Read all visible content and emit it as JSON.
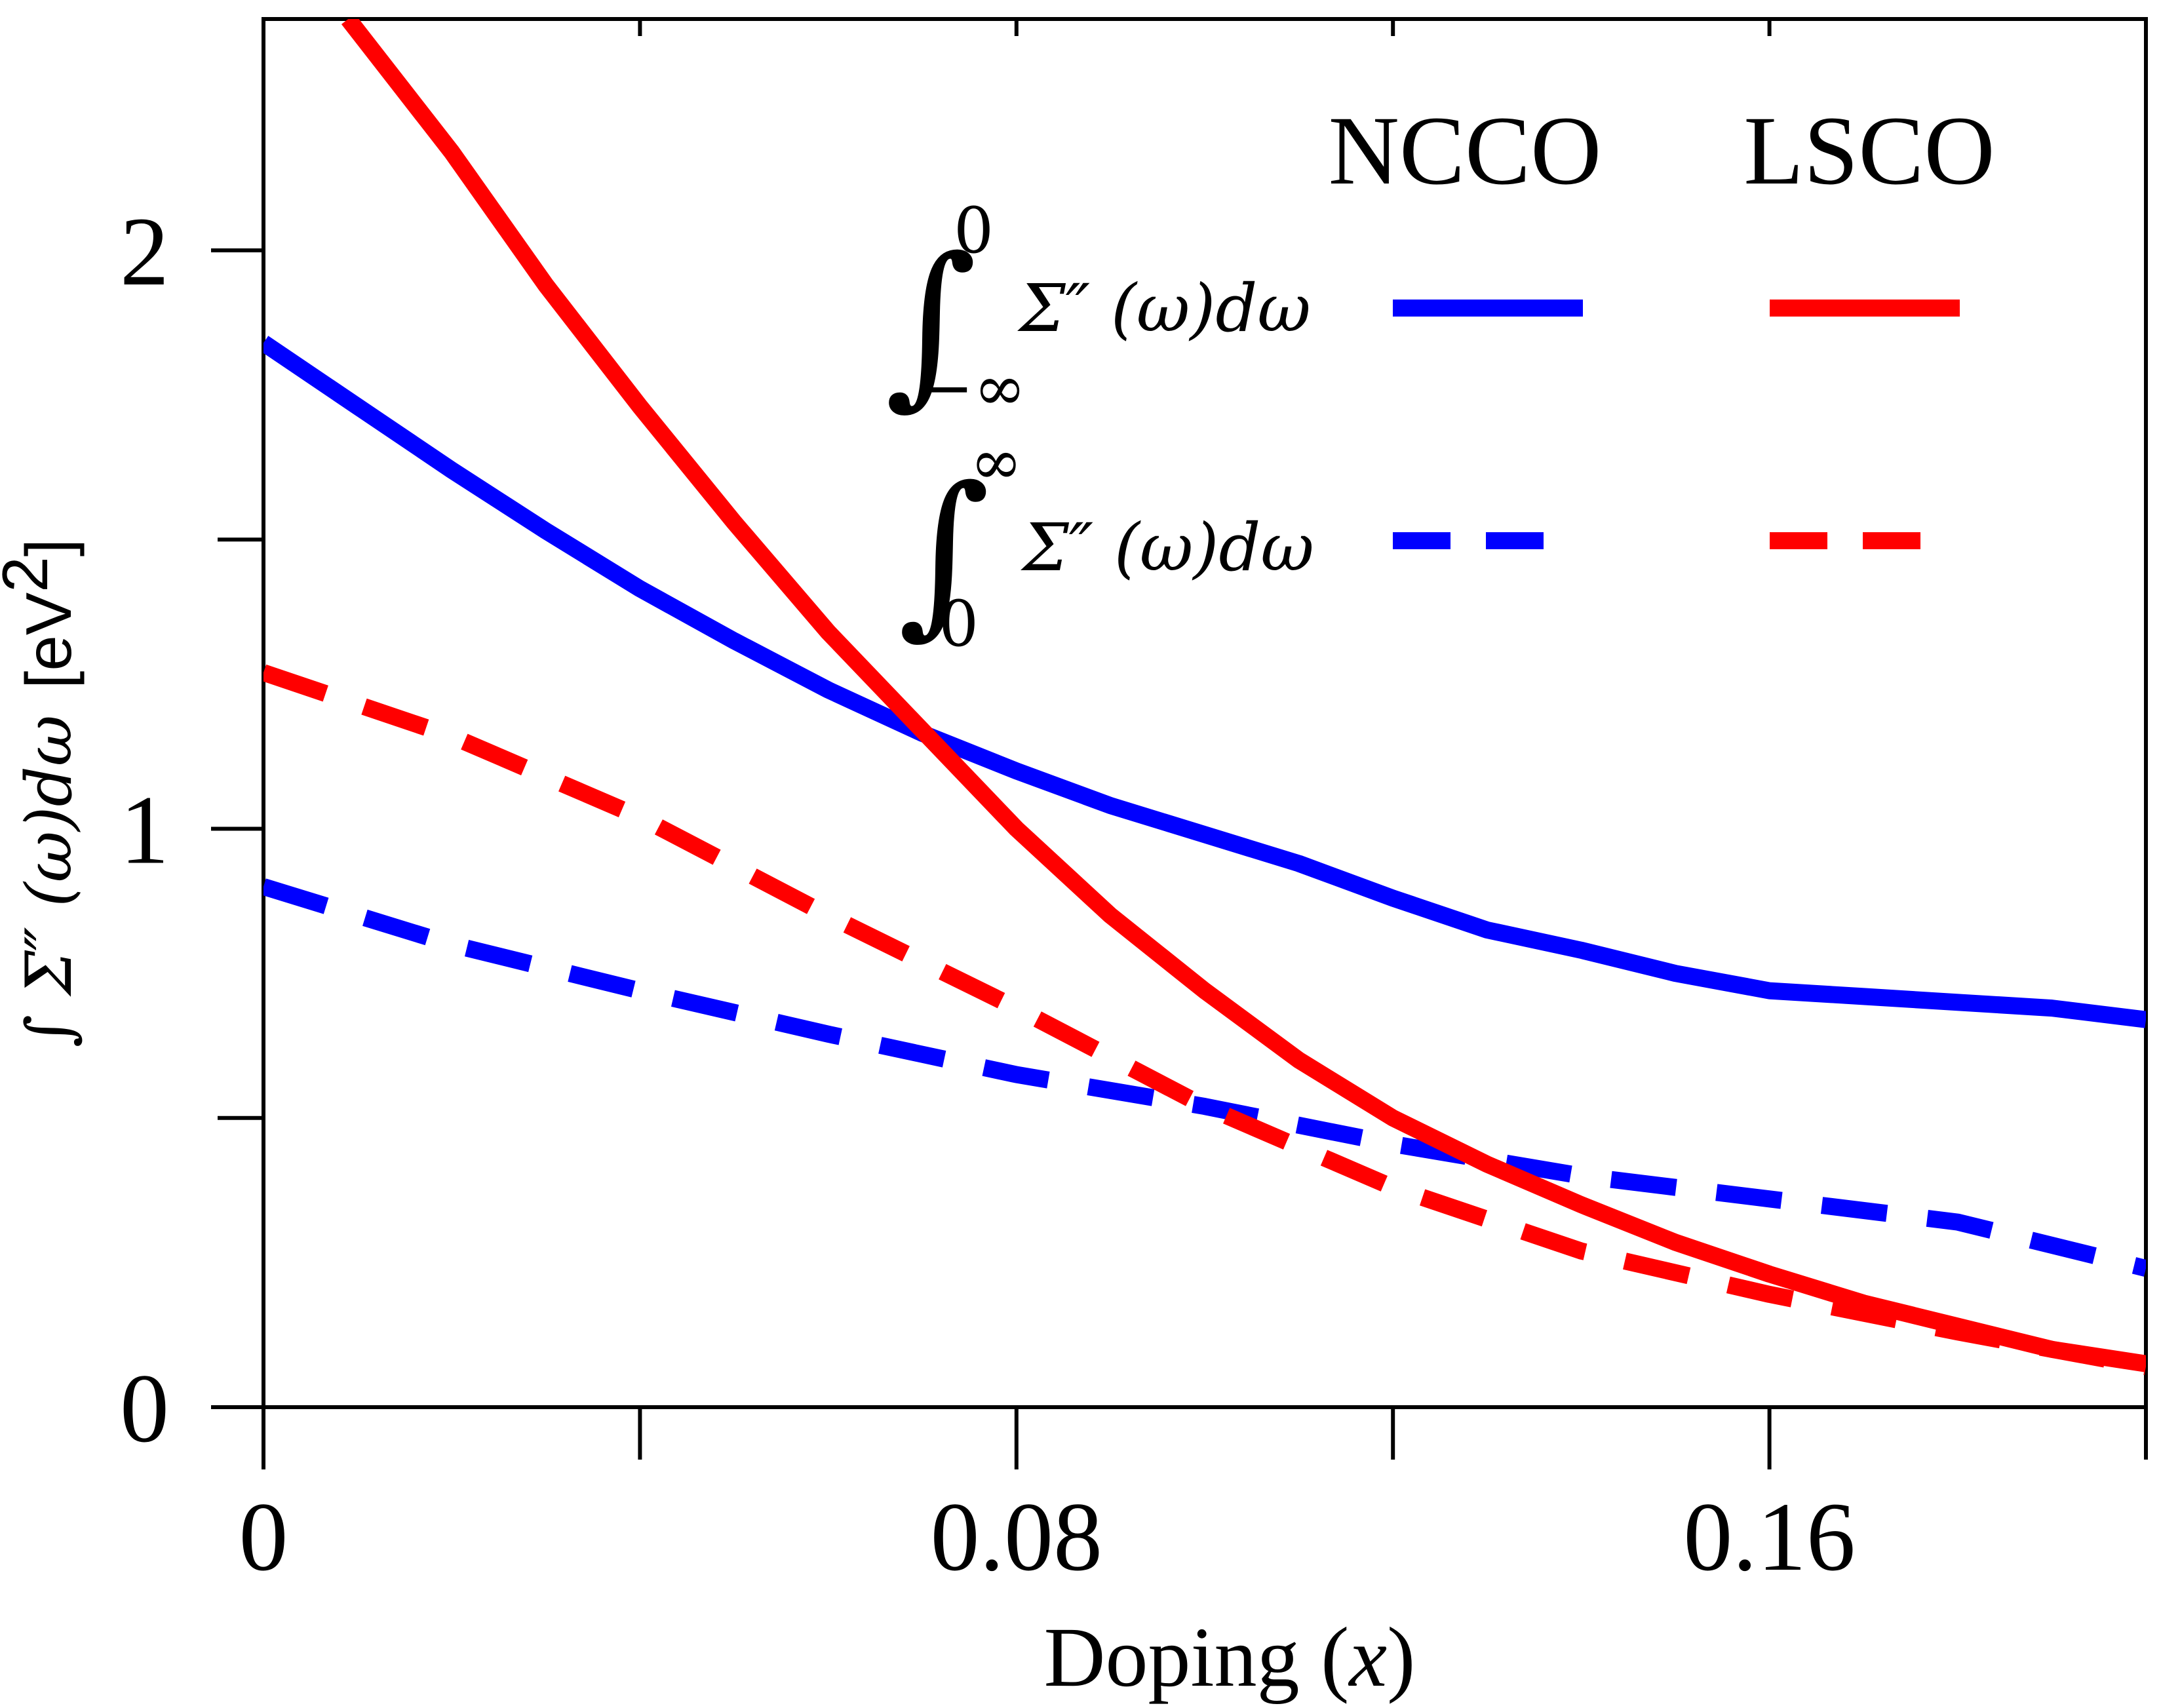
{
  "chart_data": {
    "type": "line",
    "xlabel": "Doping (",
    "xlabel_var": "x",
    "xlabel_close": ")",
    "ylabel": "∫ Σ″ (ω)dω  [eV²]",
    "ylabel_parts": {
      "integral": "∫",
      "expr": "Σ″ (ω)dω",
      "unit": "[eV",
      "unit_sup": "2",
      "unit_close": "]"
    },
    "xlim": [
      0,
      0.2
    ],
    "ylim": [
      0,
      2.4
    ],
    "xticks_major": [
      0,
      0.08,
      0.16
    ],
    "xticks_major_labels": [
      "0",
      "0.08",
      "0.16"
    ],
    "xticks_minor": [
      0.04,
      0.12,
      0.2
    ],
    "yticks_major": [
      0,
      1,
      2
    ],
    "yticks_major_labels": [
      "0",
      "1",
      "2"
    ],
    "yticks_minor": [
      0.5,
      1.5
    ],
    "grid": false,
    "legend_position": "top-right",
    "legend": {
      "col_headers": [
        "NCCO",
        "LSCO"
      ],
      "rows": [
        {
          "integral": "∫",
          "upper": "0",
          "lower": "−∞",
          "expr": "Σ″ (ω)dω",
          "style": "solid"
        },
        {
          "integral": "∫",
          "upper": "∞",
          "lower": "0",
          "expr": "Σ″ (ω)dω",
          "style": "dashed"
        }
      ]
    },
    "colors": {
      "NCCO": "#0000ff",
      "LSCO": "#ff0000"
    },
    "series": [
      {
        "material": "NCCO",
        "style": "solid",
        "color": "#0000ff",
        "x": [
          0,
          0.01,
          0.02,
          0.03,
          0.04,
          0.05,
          0.06,
          0.07,
          0.08,
          0.09,
          0.1,
          0.11,
          0.12,
          0.13,
          0.14,
          0.15,
          0.16,
          0.17,
          0.18,
          0.19,
          0.2
        ],
        "y": [
          1.84,
          1.73,
          1.62,
          1.515,
          1.415,
          1.325,
          1.24,
          1.165,
          1.1,
          1.04,
          0.99,
          0.94,
          0.88,
          0.825,
          0.79,
          0.75,
          0.72,
          0.71,
          0.7,
          0.69,
          0.67
        ]
      },
      {
        "material": "NCCO",
        "style": "dashed",
        "color": "#0000ff",
        "x": [
          0,
          0.02,
          0.04,
          0.06,
          0.08,
          0.1,
          0.12,
          0.14,
          0.16,
          0.18,
          0.2
        ],
        "y": [
          0.9,
          0.8,
          0.72,
          0.645,
          0.575,
          0.52,
          0.455,
          0.4,
          0.36,
          0.32,
          0.24
        ]
      },
      {
        "material": "LSCO",
        "style": "solid",
        "color": "#ff0000",
        "x": [
          0.009,
          0.02,
          0.03,
          0.04,
          0.05,
          0.06,
          0.07,
          0.08,
          0.09,
          0.1,
          0.11,
          0.12,
          0.13,
          0.14,
          0.15,
          0.16,
          0.17,
          0.18,
          0.19,
          0.2
        ],
        "y": [
          2.4,
          2.17,
          1.94,
          1.73,
          1.53,
          1.34,
          1.17,
          1.0,
          0.85,
          0.72,
          0.6,
          0.5,
          0.42,
          0.35,
          0.285,
          0.23,
          0.18,
          0.14,
          0.1,
          0.075
        ]
      },
      {
        "material": "LSCO",
        "style": "dashed",
        "color": "#ff0000",
        "x": [
          0,
          0.02,
          0.04,
          0.06,
          0.08,
          0.1,
          0.12,
          0.14,
          0.16,
          0.18,
          0.2
        ],
        "y": [
          1.27,
          1.16,
          1.02,
          0.85,
          0.69,
          0.52,
          0.38,
          0.27,
          0.195,
          0.13,
          0.07
        ]
      }
    ]
  }
}
